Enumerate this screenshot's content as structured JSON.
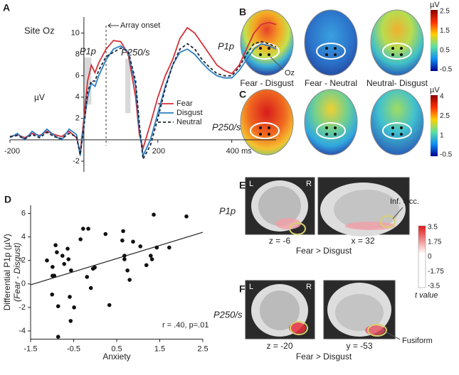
{
  "chart_data": [
    {
      "type": "line",
      "panel_label": "A",
      "title": "Site Oz",
      "y_label": "µV",
      "x": [
        -200,
        -180,
        -160,
        -140,
        -120,
        -100,
        -80,
        -60,
        -40,
        -20,
        -10,
        0,
        10,
        20,
        30,
        40,
        60,
        80,
        100,
        120,
        140,
        150,
        160,
        180,
        200,
        220,
        240,
        260,
        280,
        300,
        320,
        340,
        360,
        380,
        400,
        420,
        440,
        460,
        480,
        500,
        520
      ],
      "series": [
        {
          "name": "Fear",
          "color": "#d2323a",
          "linestyle": "solid",
          "values": [
            0.3,
            0.5,
            0.2,
            0.6,
            0.4,
            0.8,
            0.5,
            0.3,
            0.8,
            0.2,
            -1.2,
            2,
            5.5,
            7,
            6.3,
            7.2,
            8.5,
            9.3,
            9.2,
            8,
            4,
            0.5,
            -0.8,
            1.5,
            4,
            6,
            7.5,
            9.5,
            10.5,
            10,
            9,
            8,
            7,
            6.5,
            6.2,
            7,
            8.5,
            10,
            10.8,
            11,
            10.8
          ]
        },
        {
          "name": "Disgust",
          "color": "#2f7fc1",
          "linestyle": "solid",
          "values": [
            0.2,
            0.6,
            0,
            0.8,
            0.3,
            1,
            0.4,
            0,
            1,
            0.5,
            -1.5,
            1.5,
            4,
            5.3,
            5,
            6,
            7.5,
            8.5,
            8.8,
            8.2,
            5,
            1,
            -1.5,
            0,
            2.5,
            5,
            7,
            8.2,
            8.5,
            8,
            7.2,
            6.5,
            6,
            5.8,
            5.8,
            6.5,
            7.5,
            8.5,
            9,
            8.8,
            8.5
          ]
        },
        {
          "name": "Neutral",
          "color": "#1c2838",
          "linestyle": "dashed",
          "values": [
            0.3,
            0.4,
            0.1,
            0.5,
            0.2,
            0.7,
            0.3,
            0.1,
            0.6,
            0.3,
            -1.4,
            1.2,
            4.5,
            5.5,
            5.5,
            6.5,
            7.8,
            8.2,
            8.6,
            8.3,
            5.5,
            1.5,
            -1.8,
            -0.5,
            2,
            4.8,
            7,
            8.5,
            9,
            8.5,
            7.5,
            6.8,
            6.2,
            6,
            6,
            6.8,
            8,
            9,
            9.2,
            9,
            8.7
          ]
        }
      ],
      "xlim": [
        -200,
        520
      ],
      "ylim": [
        -3,
        11.5
      ],
      "xticks": [
        -200,
        200,
        {
          "value": 400,
          "label": "400 ms"
        }
      ],
      "yticks": [
        -2,
        2,
        4,
        6,
        8,
        10
      ],
      "legend": "lower right",
      "onset": {
        "label": "Array onset",
        "x": 60
      },
      "windows": [
        {
          "label": "P1p",
          "xrange": [
            0,
            20
          ],
          "yrange": [
            3.3,
            7.7
          ]
        },
        {
          "label": "P250/s",
          "xrange": [
            112,
            126
          ],
          "yrange": [
            2.5,
            7.6
          ]
        }
      ]
    },
    {
      "type": "scatter",
      "panel_label": "D",
      "x_label": "Anxiety",
      "y_label": "Differential P1p (µV)",
      "y_sublabel": "(Fear - Disgust)",
      "annotation": "r = .40, p=.01",
      "color": "#111111",
      "x": [
        -1.12,
        -0.99,
        -0.92,
        -0.99,
        -0.95,
        -1.0,
        -0.86,
        -0.89,
        -0.76,
        -0.72,
        -0.64,
        -0.62,
        -0.56,
        -0.59,
        -0.49,
        -0.57,
        -0.86,
        -0.34,
        -0.28,
        -0.16,
        -0.19,
        -0.1,
        -0.05,
        -0.01,
        0.24,
        0.33,
        0.65,
        0.63,
        0.68,
        0.68,
        0.75,
        0.8,
        0.88,
        1.05,
        1.19,
        1.29,
        1.32,
        1.36,
        1.43,
        1.72,
        2.12
      ],
      "values": [
        2.0,
        1.45,
        3.3,
        0.7,
        0.7,
        -0.9,
        -1.9,
        2.7,
        2.4,
        1.7,
        3.0,
        2.1,
        1.15,
        -1.1,
        -2.0,
        -3.15,
        -4.5,
        3.8,
        4.7,
        4.7,
        0.6,
        -0.35,
        1.3,
        1.4,
        4.25,
        -1.8,
        4.5,
        3.7,
        2.4,
        2.1,
        1.15,
        0.35,
        3.6,
        3.2,
        1.6,
        2.4,
        2.1,
        5.9,
        3.1,
        3.1,
        5.75
      ],
      "fit": {
        "slope": 1.12,
        "intercept": 1.6
      },
      "xlim": [
        -1.5,
        2.5
      ],
      "ylim": [
        -4.7,
        6.7
      ],
      "xticks": [
        -1.5,
        -0.5,
        0.5,
        1.5,
        2.5
      ],
      "yticks": [
        -4,
        -2,
        0,
        2,
        4,
        6
      ]
    }
  ],
  "panels": {
    "B": {
      "letter": "B",
      "row_label": "P1p",
      "unit": "µV",
      "colorbar_ticks": [
        2.5,
        1.5,
        0.5,
        -0.5
      ],
      "captions": [
        "Fear - Disgust",
        "Fear - Neutral",
        "Neutral- Disgust"
      ],
      "electrode": "Oz"
    },
    "C": {
      "letter": "C",
      "row_label": "P250/s",
      "unit": "µV",
      "colorbar_ticks": [
        4,
        2.5,
        1,
        -0.5
      ]
    },
    "E": {
      "letter": "E",
      "row_label": "P1p",
      "left": "L",
      "right": "R",
      "slice1": "z = -6",
      "slice2": "x = 32",
      "contrast": "Fear > Disgust",
      "region": "Inf. Occ.",
      "colorbar_ticks": [
        3.5,
        1.75,
        0,
        -1.75,
        -3.5
      ],
      "colorbar_label": "t value"
    },
    "F": {
      "letter": "F",
      "row_label": "P250/s",
      "left": "L",
      "right": "R",
      "slice1": "z = -20",
      "slice2": "y = -53",
      "contrast": "Fear > Disgust",
      "region": "Fusiform"
    }
  }
}
